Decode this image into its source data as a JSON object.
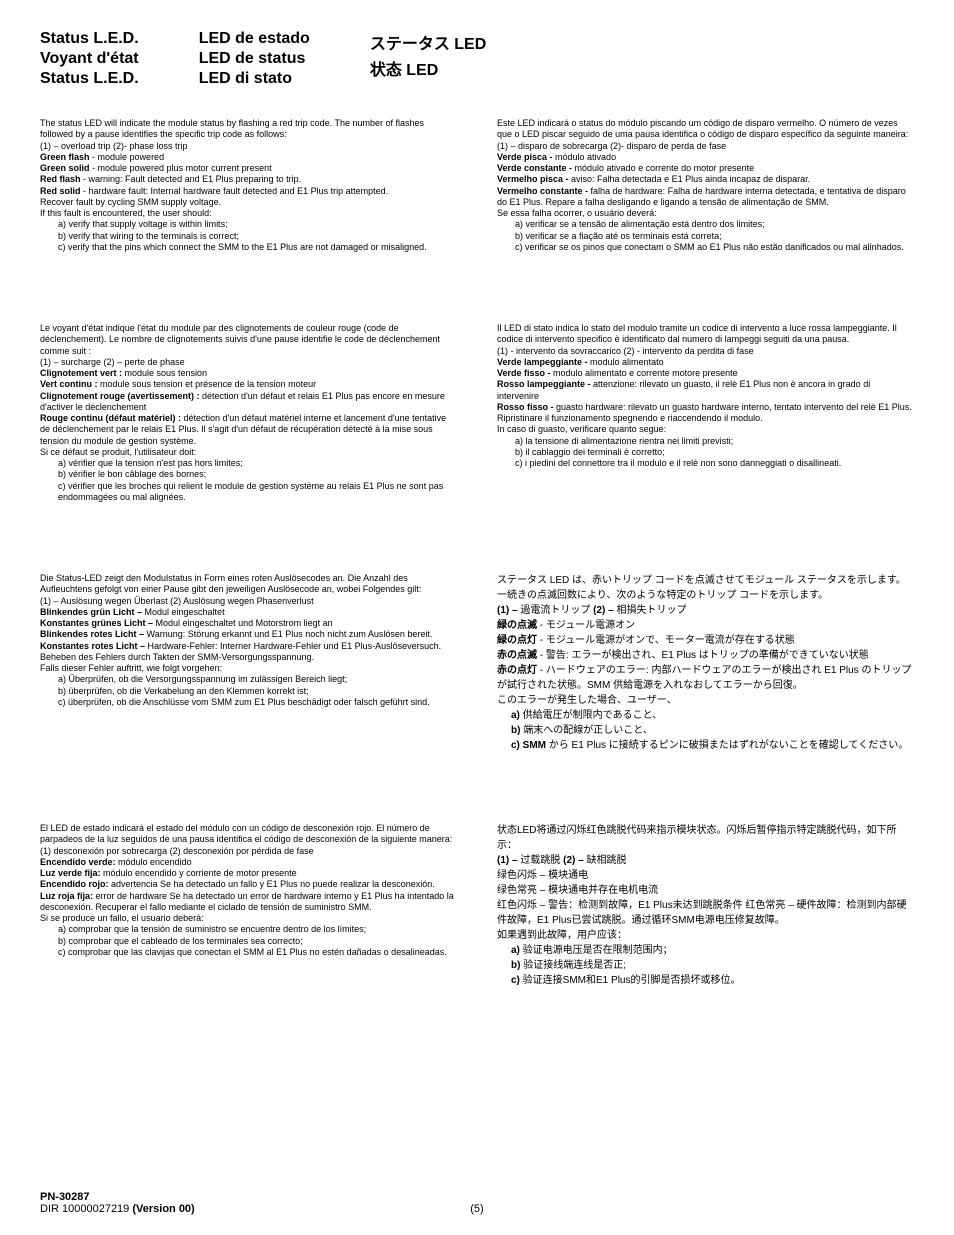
{
  "header": {
    "col1": [
      "Status L.E.D.",
      "Voyant d'état",
      "Status L.E.D."
    ],
    "col2": [
      "LED de estado",
      "LED de status",
      "LED di stato"
    ],
    "col3": [
      "ステータス LED",
      "状态 LED"
    ]
  },
  "blocks": {
    "en": {
      "intro": "The status LED will indicate the module status by flashing a red trip code.  The number of flashes followed by a pause identifies the specific trip code as follows:",
      "codes": "(1) – overload trip     (2)- phase loss trip",
      "gflash_lbl": "Green flash",
      "gflash_txt": " - module powered",
      "gsolid_lbl": "Green solid",
      "gsolid_txt": " - module powered plus motor current present",
      "rflash_lbl": "Red flash",
      "rflash_txt": " - warning: Fault detected and E1 Plus preparing to trip.",
      "rsolid_lbl": "Red solid",
      "rsolid_txt": " - hardware fault:  Internal hardware fault detected and E1 Plus trip attempted.",
      "recover": "Recover fault by cycling SMM supply voltage.",
      "ifline": "If this fault is encountered, the user should:",
      "a": "a) verify that supply voltage is within limits;",
      "b": "b) verify that wiring to the terminals is correct;",
      "c": "c) verify that the pins which connect the SMM to the E1 Plus are not damaged or misaligned."
    },
    "pt": {
      "intro": "Este LED indicará o status do módulo piscando um código de disparo vermelho.  O número de vezes que o LED piscar seguido de uma pausa identifica o código de disparo específico da seguinte maneira:",
      "codes": "(1) – disparo de sobrecarga     (2)- disparo de perda de fase",
      "gflash_lbl": "Verde pisca -",
      "gflash_txt": " módulo ativado",
      "gsolid_lbl": "Verde constante -",
      "gsolid_txt": " módulo ativado e corrente do motor presente",
      "rflash_lbl": "Vermelho pisca -",
      "rflash_txt": " aviso:  Falha detectada e E1 Plus ainda incapaz de disparar.",
      "rsolid_lbl": "Vermelho constante -",
      "rsolid_txt": " falha de hardware:  Falha de hardware interna detectada, e tentativa de disparo do E1 Plus.  Repare a falha desligando e ligando a tensão de alimentação de SMM.",
      "ifline": "Se essa falha ocorrer, o usuário deverá:",
      "a": "a) verificar se a tensão de alimentação está dentro dos limites;",
      "b": "b) verificar se a fiação até os terminais está correta;",
      "c": "c) verificar se os pinos que conectam o SMM ao E1 Plus não estão danificados ou mal alinhados."
    },
    "fr": {
      "intro": "Le voyant d'état indique l'état du module par des clignotements de couleur rouge (code de déclenchement).  Le nombre de clignotements suivis d'une pause identifie le code de déclenchement comme suit :",
      "codes": "(1) – surcharge      (2) – perte de phase",
      "gflash_lbl": "Clignotement vert :",
      "gflash_txt": " module sous tension",
      "gsolid_lbl": "Vert continu :",
      "gsolid_txt": " module sous tension et présence de la tension moteur",
      "rflash_lbl": "Clignotement rouge (avertissement) :",
      "rflash_txt": " détection d'un défaut et relais E1 Plus pas encore en mesure d'activer le déclenchement",
      "rsolid_lbl": "Rouge continu (défaut matériel) :",
      "rsolid_txt": " détection d'un défaut matériel interne et lancement d'une tentative de déclenchement par le relais E1 Plus. Il s'agit d'un défaut de récupération détecté à la mise sous tension du module de gestion système.",
      "ifline": "Si ce défaut se produit, l'utilisateur doit:",
      "a": "a) vérifier que la tension n'est pas hors limites;",
      "b": "b) vérifier le bon câblage des bornes;",
      "c": "c) vérifier que les broches qui relient le module de gestion système au relais E1 Plus ne sont pas endommagées ou mal alignées."
    },
    "it": {
      "intro": "Il LED di stato indica lo stato del modulo tramite un codice di intervento a luce rossa lampeggiante. Il codice di intervento specifico è identificato dal numero di lampeggi seguiti da una pausa.",
      "codes": "(1) - intervento da sovraccarico     (2) - intervento da perdita di fase",
      "gflash_lbl": "Verde lampeggiante -",
      "gflash_txt": " modulo alimentato",
      "gsolid_lbl": "Verde fisso -",
      "gsolid_txt": " modulo alimentato e corrente motore presente",
      "rflash_lbl": "Rosso lampeggiante -",
      "rflash_txt": " attenzione: rilevato un guasto, il relè E1 Plus non è ancora in grado di intervenire",
      "rsolid_lbl": "Rosso fisso -",
      "rsolid_txt": " guasto hardware: rilevato un guasto hardware interno, tentato intervento del relè E1 Plus. Ripristinare il funzionamento spegnendo e riaccendendo il modulo.",
      "ifline": "In caso di guasto, verificare quanto segue:",
      "a": "a) la tensione di alimentazione rientra nei limiti previsti;",
      "b": "b) il cablaggio dei terminali è corretto;",
      "c": "c) i piedini del connettore tra il modulo e il relè non sono danneggiati o disallineati."
    },
    "de": {
      "intro": "Die Status-LED zeigt den Modulstatus in Form eines roten Auslösecodes an. Die Anzahl des Aufleuchtens gefolgt von einer Pause gibt den jeweiligen Auslösecode an, wobei Folgendes gilt:",
      "codes": "(1) – Auslösung wegen Überlast                            (2) Auslösung wegen Phasenverlust",
      "gflash_lbl": "Blinkendes grün Licht –",
      "gflash_txt": " Modul eingeschaltet",
      "gsolid_lbl": "Konstantes grünes Licht –",
      "gsolid_txt": " Modul eingeschaltet und Motorstrom liegt an",
      "rflash_lbl": "Blinkendes rotes Licht –",
      "rflash_txt": " Warnung: Störung erkannt und E1 Plus noch nicht zum Auslösen bereit.",
      "rsolid_lbl": "Konstantes rotes Licht –",
      "rsolid_txt": " Hardware-Fehler: Interner Hardware-Fehler und E1 Plus-Auslöseversuch.",
      "recover": "Beheben des Fehlers durch Takten der SMM-Versorgungsspannung.",
      "ifline": "Falls dieser Fehler auftritt, wie folgt vorgehen:",
      "a": "a) Überprüfen, ob die Versorgungsspannung im zulässigen Bereich liegt;",
      "b": "b) überprüfen, ob die Verkabelung an den Klemmen korrekt ist;",
      "c": "c) überprüfen, ob die Anschlüsse vom SMM zum E1 Plus beschädigt oder falsch geführt sind."
    },
    "ja": {
      "intro": "ステータス LED は、赤いトリップ コードを点滅させてモジュール ステータスを示します。一続きの点滅回数により、次のような特定のトリップ コードを示します。",
      "codes_lbl1": "(1) –",
      "codes_txt1": " 過電流トリップ      ",
      "codes_lbl2": "(2) –",
      "codes_txt2": " 相損失トリップ",
      "gflash_lbl": "緑の点滅",
      "gflash_txt": " - モジュール電源オン",
      "gsolid_lbl": "緑の点灯",
      "gsolid_txt": " - モジュール電源がオンで、モーター電流が存在する状態",
      "rflash_lbl": "赤の点滅",
      "rflash_txt": " - 警告: エラーが検出され、E1 Plus はトリップの準備ができていない状態",
      "rsolid_lbl": "赤の点灯",
      "rsolid_txt": " - ハードウェアのエラー: 内部ハードウェアのエラーが検出され E1 Plus のトリップが試行された状態。SMM 供給電源を入れなおしてエラーから回復。",
      "ifline": "このエラーが発生した場合、ユーザー、",
      "a_lbl": "a)",
      "a_txt": " 供給電圧が制限内であること、",
      "b_lbl": "b)",
      "b_txt": " 端末への配線が正しいこと、",
      "c_lbl": "c) SMM",
      "c_txt": " から E1 Plus に接続するピンに破損またはずれがないことを確認してください。"
    },
    "es": {
      "intro": "El LED de estado indicará el estado del módulo con un código de desconexión rojo.  El número de parpadeos de la luz seguidos de una pausa identifica el código de desconexión de la siguiente manera:",
      "codes": "(1) desconexión por sobrecarga     (2) desconexión por pérdida de fase",
      "gflash_lbl": "Encendido verde:",
      "gflash_txt": " módulo encendido",
      "gsolid_lbl": "Luz verde fija:",
      "gsolid_txt": " módulo encendido y corriente de motor presente",
      "rflash_lbl": "Encendido rojo:",
      "rflash_txt": " advertencia  Se ha detectado un fallo y E1 Plus no puede realizar la desconexión.",
      "rsolid_lbl": "Luz roja fija:",
      "rsolid_txt": " error de hardware  Se ha detectado un error de hardware interno y E1 Plus ha intentado la desconexión.  Recuperar el fallo mediante el ciclado de tensión de suministro SMM.",
      "ifline": "Si se produce un fallo, el usuario deberá:",
      "a": "a) comprobar que la tensión de suministro se encuentre dentro de los límites;",
      "b": "b) comprobar que el cableado de los terminales sea correcto;",
      "c": "c) comprobar que las clavijas que conectan el SMM al E1 Plus no estén dañadas o desalineadas."
    },
    "zh": {
      "intro": "状态LED将通过闪烁红色跳脱代码来指示模块状态。闪烁后暂停指示特定跳脱代码，如下所示：",
      "codes_lbl1": "(1) –",
      "codes_txt1": " 过载跳脱    ",
      "codes_lbl2": "(2) –",
      "codes_txt2": " 缺相跳脱",
      "gflash": "绿色闪烁 – 模块通电",
      "gsolid": "绿色常亮 – 模块通电并存在电机电流",
      "rline": "红色闪烁 – 警告：检测到故障，E1 Plus未达到跳脱条件  红色常亮 – 硬件故障：检测到内部硬件故障，E1 Plus已尝试跳脱。通过循环SMM电源电压修复故障。",
      "ifline": "如果遇到此故障，用户应该：",
      "a_lbl": "a)",
      "a_txt": " 验证电源电压是否在限制范围内；",
      "b_lbl": "b)",
      "b_txt": " 验证接线端连线是否正;",
      "c_lbl": "c)",
      "c_txt": " 验证连接SMM和E1 Plus的引脚是否损坏或移位。"
    }
  },
  "footer": {
    "pn": "PN-30287",
    "dir": "DIR 10000027219 ",
    "ver": "(Version 00)",
    "page": "(5)"
  }
}
